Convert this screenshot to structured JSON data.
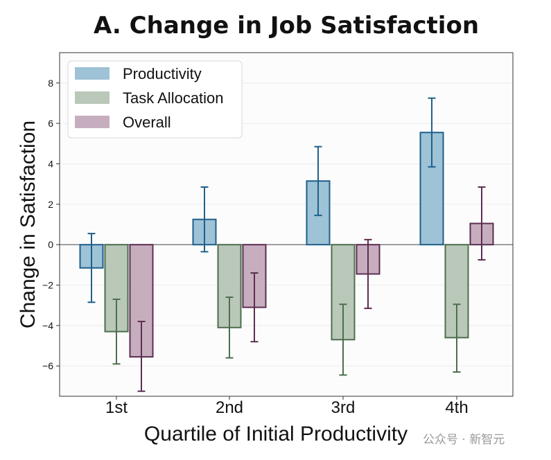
{
  "chart_data": {
    "type": "bar",
    "title": "A. Change in Job Satisfaction",
    "xlabel": "Quartile of Initial Productivity",
    "ylabel": "Change in Satisfaction",
    "categories": [
      "1st",
      "2nd",
      "3rd",
      "4th"
    ],
    "ylim": [
      -7.5,
      9.5
    ],
    "yticks": [
      -6,
      -4,
      -2,
      0,
      2,
      4,
      6,
      8
    ],
    "grid": true,
    "legend_position": "top-left",
    "series": [
      {
        "name": "Productivity",
        "color": "#1f5f8b",
        "fill": "#9ec2d6",
        "values": [
          -1.15,
          1.25,
          3.15,
          5.55
        ],
        "err_low": [
          -2.85,
          -0.35,
          1.45,
          3.85
        ],
        "err_high": [
          0.55,
          2.85,
          4.85,
          7.25
        ]
      },
      {
        "name": "Task Allocation",
        "color": "#4d6e4d",
        "fill": "#b9c8b9",
        "values": [
          -4.3,
          -4.1,
          -4.7,
          -4.6
        ],
        "err_low": [
          -5.9,
          -5.6,
          -6.45,
          -6.3
        ],
        "err_high": [
          -2.7,
          -2.6,
          -2.95,
          -2.95
        ]
      },
      {
        "name": "Overall",
        "color": "#5c2d52",
        "fill": "#c7aebe",
        "values": [
          -5.55,
          -3.1,
          -1.45,
          1.05
        ],
        "err_low": [
          -7.25,
          -4.8,
          -3.15,
          -0.75
        ],
        "err_high": [
          -3.8,
          -1.4,
          0.25,
          2.85
        ]
      }
    ]
  },
  "watermark": "公众号 · 新智元"
}
